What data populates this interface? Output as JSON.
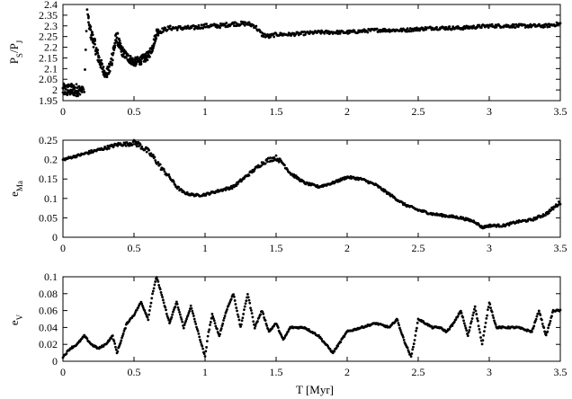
{
  "figure": {
    "xlabel": "T [Myr]"
  },
  "chart_data": [
    {
      "type": "scatter",
      "ylabel": "P_S/P_J",
      "ylabel_main": "P",
      "ylabel_sub1": "S",
      "ylabel_sep": "/P",
      "ylabel_sub2": "J",
      "xlim": [
        0,
        3.5
      ],
      "ylim": [
        1.95,
        2.4
      ],
      "xticks": [
        "0",
        "0.5",
        "1",
        "1.5",
        "2",
        "2.5",
        "3",
        "3.5"
      ],
      "yticks": [
        "1.95",
        "2",
        "2.05",
        "2.1",
        "2.15",
        "2.2",
        "2.25",
        "2.3",
        "2.35",
        "2.4"
      ],
      "x": [
        0,
        0.05,
        0.1,
        0.15,
        0.17,
        0.19,
        0.22,
        0.25,
        0.28,
        0.3,
        0.33,
        0.36,
        0.38,
        0.4,
        0.43,
        0.46,
        0.5,
        0.55,
        0.6,
        0.63,
        0.66,
        0.7,
        0.75,
        0.8,
        0.9,
        1.0,
        1.1,
        1.2,
        1.3,
        1.35,
        1.4,
        1.45,
        1.5,
        1.6,
        1.8,
        2.0,
        2.2,
        2.4,
        2.6,
        2.8,
        3.0,
        3.2,
        3.4,
        3.5
      ],
      "y": [
        2.0,
        2.0,
        2.0,
        2.0,
        2.37,
        2.28,
        2.22,
        2.15,
        2.1,
        2.07,
        2.1,
        2.2,
        2.25,
        2.2,
        2.17,
        2.15,
        2.13,
        2.14,
        2.16,
        2.2,
        2.27,
        2.28,
        2.29,
        2.29,
        2.29,
        2.3,
        2.3,
        2.31,
        2.31,
        2.3,
        2.26,
        2.25,
        2.26,
        2.26,
        2.27,
        2.27,
        2.28,
        2.28,
        2.29,
        2.29,
        2.3,
        2.3,
        2.3,
        2.31
      ],
      "noise": [
        0.03,
        0.03,
        0.03,
        0.01,
        0.01,
        0.03,
        0.03,
        0.03,
        0.02,
        0.02,
        0.03,
        0.04,
        0.03,
        0.03,
        0.02,
        0.02,
        0.02,
        0.02,
        0.02,
        0.02,
        0.02,
        0.01,
        0.01,
        0.01,
        0.01,
        0.01,
        0.01,
        0.01,
        0.01,
        0.01,
        0.01,
        0.01,
        0.008,
        0.008,
        0.008,
        0.008,
        0.008,
        0.008,
        0.008,
        0.008,
        0.008,
        0.008,
        0.008,
        0.008
      ]
    },
    {
      "type": "scatter",
      "ylabel": "e_Ma",
      "ylabel_main": "e",
      "ylabel_sub1": "Ma",
      "xlim": [
        0,
        3.5
      ],
      "ylim": [
        0,
        0.25
      ],
      "xticks": [
        "0",
        "0.5",
        "1",
        "1.5",
        "2",
        "2.5",
        "3",
        "3.5"
      ],
      "yticks": [
        "0",
        "0.05",
        "0.1",
        "0.15",
        "0.2",
        "0.25"
      ],
      "x": [
        0,
        0.1,
        0.2,
        0.3,
        0.4,
        0.45,
        0.5,
        0.55,
        0.6,
        0.65,
        0.7,
        0.75,
        0.8,
        0.85,
        0.9,
        0.95,
        1.0,
        1.05,
        1.1,
        1.2,
        1.3,
        1.4,
        1.45,
        1.5,
        1.55,
        1.6,
        1.7,
        1.8,
        1.9,
        2.0,
        2.1,
        2.2,
        2.3,
        2.4,
        2.5,
        2.6,
        2.7,
        2.8,
        2.9,
        2.95,
        3.0,
        3.1,
        3.2,
        3.3,
        3.4,
        3.5
      ],
      "y": [
        0.2,
        0.21,
        0.22,
        0.23,
        0.24,
        0.24,
        0.245,
        0.235,
        0.22,
        0.2,
        0.175,
        0.155,
        0.13,
        0.115,
        0.11,
        0.108,
        0.11,
        0.115,
        0.12,
        0.13,
        0.16,
        0.19,
        0.2,
        0.205,
        0.19,
        0.165,
        0.14,
        0.13,
        0.14,
        0.155,
        0.15,
        0.135,
        0.11,
        0.085,
        0.07,
        0.06,
        0.055,
        0.05,
        0.04,
        0.025,
        0.03,
        0.03,
        0.04,
        0.045,
        0.06,
        0.09
      ],
      "noise": [
        0.003,
        0.003,
        0.004,
        0.004,
        0.005,
        0.005,
        0.008,
        0.008,
        0.008,
        0.008,
        0.006,
        0.005,
        0.004,
        0.003,
        0.003,
        0.003,
        0.003,
        0.003,
        0.003,
        0.004,
        0.004,
        0.005,
        0.006,
        0.006,
        0.005,
        0.004,
        0.003,
        0.003,
        0.003,
        0.003,
        0.003,
        0.003,
        0.003,
        0.003,
        0.003,
        0.003,
        0.003,
        0.003,
        0.003,
        0.003,
        0.003,
        0.003,
        0.003,
        0.003,
        0.004,
        0.005
      ]
    },
    {
      "type": "scatter",
      "ylabel": "e_V",
      "ylabel_main": "e",
      "ylabel_sub1": "V",
      "xlim": [
        0,
        3.5
      ],
      "ylim": [
        0,
        0.1
      ],
      "xticks": [
        "0",
        "0.5",
        "1",
        "1.5",
        "2",
        "2.5",
        "3",
        "3.5"
      ],
      "yticks": [
        "0",
        "0.02",
        "0.04",
        "0.06",
        "0.08",
        "0.1"
      ],
      "x": [
        0.0,
        0.05,
        0.1,
        0.15,
        0.2,
        0.25,
        0.3,
        0.35,
        0.38,
        0.42,
        0.45,
        0.5,
        0.55,
        0.6,
        0.63,
        0.66,
        0.7,
        0.75,
        0.8,
        0.85,
        0.9,
        0.95,
        1.0,
        1.02,
        1.05,
        1.1,
        1.15,
        1.2,
        1.25,
        1.3,
        1.35,
        1.4,
        1.45,
        1.5,
        1.55,
        1.6,
        1.7,
        1.8,
        1.9,
        2.0,
        2.1,
        2.2,
        2.3,
        2.35,
        2.4,
        2.45,
        2.48,
        2.5,
        2.55,
        2.6,
        2.65,
        2.7,
        2.75,
        2.8,
        2.85,
        2.9,
        2.95,
        3.0,
        3.05,
        3.1,
        3.2,
        3.3,
        3.35,
        3.4,
        3.45,
        3.5
      ],
      "y": [
        0.005,
        0.015,
        0.02,
        0.03,
        0.02,
        0.015,
        0.02,
        0.03,
        0.01,
        0.03,
        0.045,
        0.055,
        0.07,
        0.05,
        0.08,
        0.1,
        0.075,
        0.045,
        0.07,
        0.04,
        0.065,
        0.035,
        0.005,
        0.03,
        0.055,
        0.03,
        0.06,
        0.08,
        0.04,
        0.08,
        0.04,
        0.06,
        0.035,
        0.045,
        0.025,
        0.04,
        0.04,
        0.03,
        0.01,
        0.035,
        0.04,
        0.045,
        0.04,
        0.05,
        0.025,
        0.005,
        0.03,
        0.05,
        0.045,
        0.04,
        0.04,
        0.035,
        0.045,
        0.06,
        0.03,
        0.065,
        0.02,
        0.07,
        0.04,
        0.04,
        0.04,
        0.035,
        0.06,
        0.03,
        0.06,
        0.06
      ],
      "noise": [
        0.001
      ]
    }
  ]
}
